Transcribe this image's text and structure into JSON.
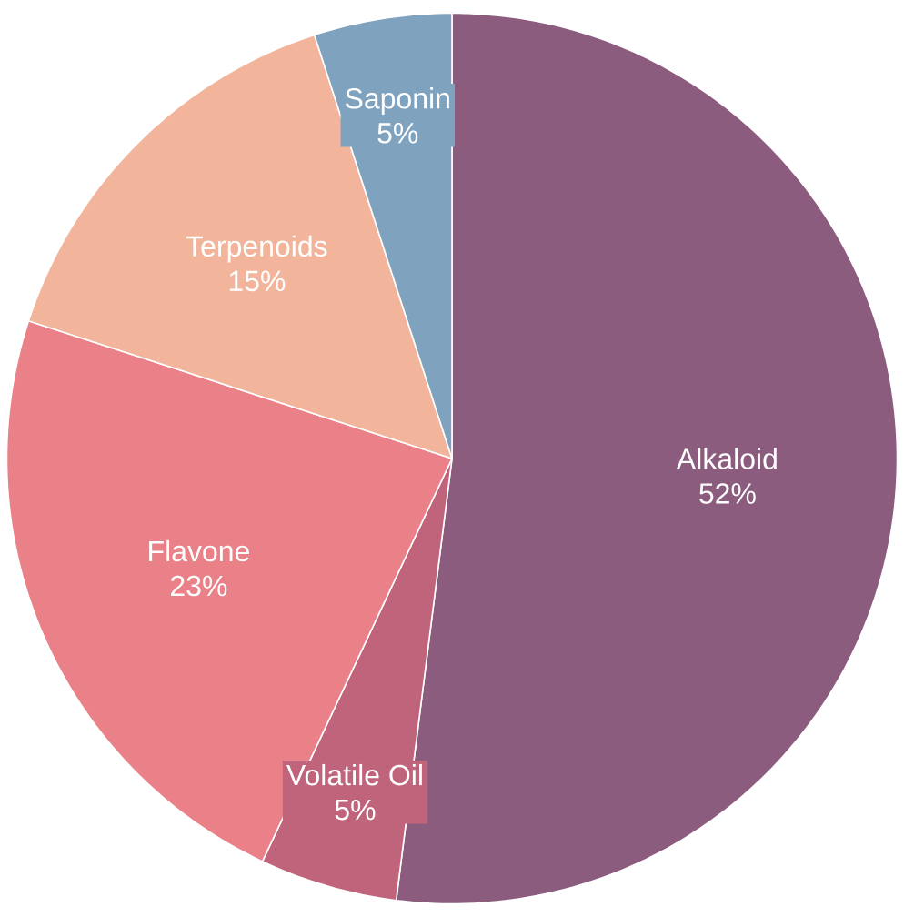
{
  "chart_data": {
    "type": "pie",
    "categories": [
      "Alkaloid",
      "Volatile Oil",
      "Flavone",
      "Terpenoids",
      "Saponin"
    ],
    "values": [
      52,
      5,
      23,
      15,
      5
    ],
    "value_labels": [
      "52%",
      "5%",
      "23%",
      "15%",
      "5%"
    ],
    "colors": [
      "#8c5c7e",
      "#c0647c",
      "#ea8088",
      "#f2b59c",
      "#7fa2bf"
    ]
  }
}
